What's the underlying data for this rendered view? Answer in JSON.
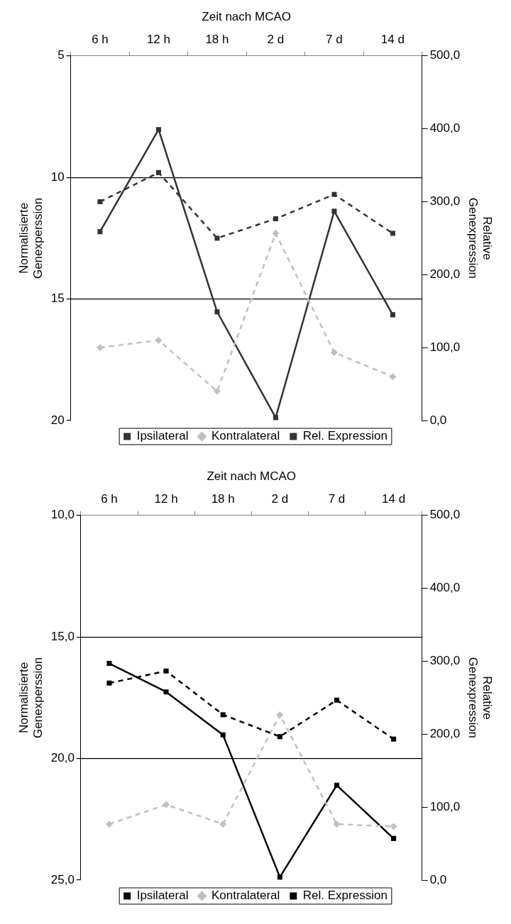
{
  "chart_data": [
    {
      "type": "line",
      "xlabel": "Zeit nach MCAO",
      "ylabel": "Normalisierte Genexperssion",
      "y2label": "Relative Genexpression",
      "categories": [
        "6 h",
        "12 h",
        "18 h",
        "2 d",
        "7 d",
        "14 d"
      ],
      "ylim": [
        20,
        5
      ],
      "yticks": [
        5,
        10,
        15,
        20
      ],
      "y2lim": [
        0,
        500
      ],
      "y2ticks": [
        {
          "value": 0,
          "label": "0,0"
        },
        {
          "value": 100,
          "label": "100,0"
        },
        {
          "value": 200,
          "label": "200,0"
        },
        {
          "value": 300,
          "label": "300,0"
        },
        {
          "value": 400,
          "label": "400,0"
        },
        {
          "value": 500,
          "label": "500,0"
        }
      ],
      "grid": "y",
      "legend": "bottom",
      "series": [
        {
          "name": "Ipsilateral",
          "color": "#333333",
          "line_style": "dashed",
          "marker": "square",
          "values": [
            11.0,
            9.8,
            12.5,
            11.7,
            10.7,
            12.3
          ]
        },
        {
          "name": "Kontralateral",
          "color": "#c0c0c0",
          "line_style": "dashed",
          "marker": "diamond",
          "values": [
            17.0,
            16.7,
            18.8,
            12.3,
            17.2,
            18.2
          ]
        },
        {
          "name": "Rel. Expression",
          "color": "#333333",
          "line_style": "solid",
          "marker": "square",
          "axis": "y2",
          "values": [
            259,
            399,
            149,
            4,
            287,
            145
          ]
        }
      ]
    },
    {
      "type": "line",
      "xlabel": "Zeit nach MCAO",
      "ylabel": "Normalisierte Genexperssion",
      "y2label": "Relative Genexpression",
      "categories": [
        "6 h",
        "12 h",
        "18 h",
        "2 d",
        "7 d",
        "14 d"
      ],
      "ylim": [
        25,
        10
      ],
      "yticks": [
        {
          "value": 10,
          "label": "10,0"
        },
        {
          "value": 15,
          "label": "15,0"
        },
        {
          "value": 20,
          "label": "20,0"
        },
        {
          "value": 25,
          "label": "25,0"
        }
      ],
      "y2lim": [
        0,
        500
      ],
      "y2ticks": [
        {
          "value": 0,
          "label": "0,0"
        },
        {
          "value": 100,
          "label": "100,0"
        },
        {
          "value": 200,
          "label": "200,0"
        },
        {
          "value": 300,
          "label": "300,0"
        },
        {
          "value": 400,
          "label": "400,0"
        },
        {
          "value": 500,
          "label": "500,0"
        }
      ],
      "grid": "y",
      "legend": "bottom",
      "series": [
        {
          "name": "Ipsilateral",
          "color": "#000000",
          "line_style": "dashed",
          "marker": "square",
          "values": [
            16.9,
            16.4,
            18.2,
            19.1,
            17.6,
            19.2
          ]
        },
        {
          "name": "Kontralateral",
          "color": "#c0c0c0",
          "line_style": "dashed",
          "marker": "diamond",
          "values": [
            22.7,
            21.9,
            22.7,
            18.2,
            22.7,
            22.8
          ]
        },
        {
          "name": "Rel. Expression",
          "color": "#000000",
          "line_style": "solid",
          "marker": "square",
          "axis": "y2",
          "values": [
            297,
            258,
            199,
            4,
            130,
            57
          ]
        }
      ]
    }
  ]
}
